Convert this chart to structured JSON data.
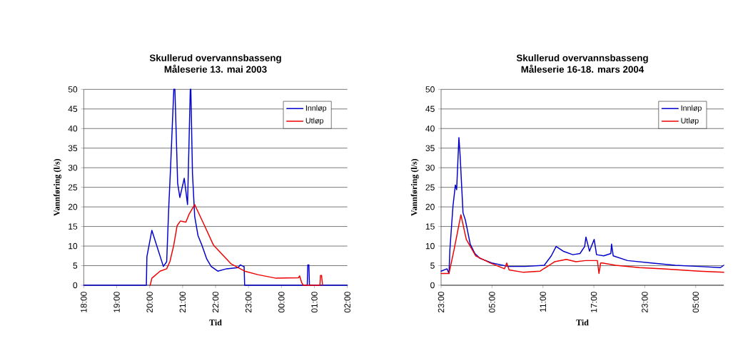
{
  "chart_data": [
    {
      "type": "line",
      "title": "Skullerud overvannsbasseng",
      "subtitle": "Måleserie 13. mai 2003",
      "xlabel": "Tid",
      "ylabel": "Vannføring (l/s)",
      "xlim": [
        "2003-05-13T18:00",
        "2003-05-14T02:00"
      ],
      "xticks": [
        {
          "value": "2003-05-13T18:00",
          "label": "18:00"
        },
        {
          "value": "2003-05-13T19:00",
          "label": "19:00"
        },
        {
          "value": "2003-05-13T20:00",
          "label": "20:00"
        },
        {
          "value": "2003-05-13T21:00",
          "label": "21:00"
        },
        {
          "value": "2003-05-13T22:00",
          "label": "22:00"
        },
        {
          "value": "2003-05-13T23:00",
          "label": "23:00"
        },
        {
          "value": "2003-05-14T00:00",
          "label": "00:00"
        },
        {
          "value": "2003-05-14T01:00",
          "label": "01:00"
        },
        {
          "value": "2003-05-14T02:00",
          "label": "02:00"
        }
      ],
      "ylim": [
        0,
        50
      ],
      "yticks": [
        0,
        5,
        10,
        15,
        20,
        25,
        30,
        35,
        40,
        45,
        50
      ],
      "grid": "y",
      "legend": "top right",
      "marker": "none",
      "line_style": "solid",
      "series": [
        {
          "name": "Innløp",
          "color": "#0000cc",
          "x": [
            "2003-05-13T18:00",
            "2003-05-13T19:54",
            "2003-05-13T19:55",
            "2003-05-13T20:04",
            "2003-05-13T20:25",
            "2003-05-13T20:31",
            "2003-05-13T20:35",
            "2003-05-13T20:38",
            "2003-05-13T20:44",
            "2003-05-13T20:46",
            "2003-05-13T20:51",
            "2003-05-13T20:55",
            "2003-05-13T21:03",
            "2003-05-13T21:09",
            "2003-05-13T21:14",
            "2003-05-13T21:15",
            "2003-05-13T21:18",
            "2003-05-13T21:22",
            "2003-05-13T21:28",
            "2003-05-13T21:35",
            "2003-05-13T21:44",
            "2003-05-13T21:52",
            "2003-05-13T22:04",
            "2003-05-13T22:20",
            "2003-05-13T22:41",
            "2003-05-13T22:45",
            "2003-05-13T22:51",
            "2003-05-13T22:52",
            "2003-05-13T22:53",
            "2003-05-14T00:47",
            "2003-05-14T00:48",
            "2003-05-14T00:50",
            "2003-05-14T00:51",
            "2003-05-14T02:00"
          ],
          "values": [
            0,
            0,
            7.3,
            14,
            4.8,
            6,
            20.6,
            29.7,
            50,
            50,
            26,
            22.4,
            27.3,
            20.6,
            50,
            50,
            28.5,
            17.6,
            12.7,
            10.3,
            6.7,
            4.8,
            3.6,
            4.2,
            4.5,
            5.2,
            4.8,
            4.8,
            0,
            0,
            5.2,
            5.2,
            0,
            0
          ]
        },
        {
          "name": "Utløp",
          "color": "#ee0000",
          "x": [
            "2003-05-13T20:01",
            "2003-05-13T20:04",
            "2003-05-13T20:19",
            "2003-05-13T20:31",
            "2003-05-13T20:37",
            "2003-05-13T20:44",
            "2003-05-13T20:50",
            "2003-05-13T20:56",
            "2003-05-13T21:06",
            "2003-05-13T21:12",
            "2003-05-13T21:22",
            "2003-05-13T21:28",
            "2003-05-13T21:40",
            "2003-05-13T21:56",
            "2003-05-13T22:12",
            "2003-05-13T22:28",
            "2003-05-13T22:53",
            "2003-05-13T23:17",
            "2003-05-13T23:50",
            "2003-05-14T00:31",
            "2003-05-14T00:33",
            "2003-05-14T00:37",
            "2003-05-14T00:40",
            "2003-05-14T01:10",
            "2003-05-14T01:11",
            "2003-05-14T01:13",
            "2003-05-14T01:15"
          ],
          "values": [
            0,
            1.8,
            3.6,
            4.2,
            6.1,
            10.3,
            15.2,
            16.4,
            16.1,
            18.2,
            20.6,
            18.8,
            15.2,
            10.3,
            7.9,
            5.5,
            3.6,
            2.7,
            1.8,
            1.9,
            2.4,
            0.6,
            0,
            0,
            2.5,
            2.5,
            0
          ]
        }
      ]
    },
    {
      "type": "line",
      "title": "Skullerud overvannsbasseng",
      "subtitle": "Måleserie 16-18. mars 2004",
      "xlabel": "Tid",
      "ylabel": "Vannføring (l/s)",
      "xlim": [
        "2004-03-16T23:00",
        "2004-03-18T08:18"
      ],
      "xticks": [
        {
          "value": "2004-03-16T23:00",
          "label": "23:00"
        },
        {
          "value": "2004-03-17T05:00",
          "label": "05:00"
        },
        {
          "value": "2004-03-17T11:00",
          "label": "11:00"
        },
        {
          "value": "2004-03-17T17:00",
          "label": "17:00"
        },
        {
          "value": "2004-03-17T23:00",
          "label": "23:00"
        },
        {
          "value": "2004-03-18T05:00",
          "label": "05:00"
        }
      ],
      "ylim": [
        0,
        50
      ],
      "yticks": [
        0,
        5,
        10,
        15,
        20,
        25,
        30,
        35,
        40,
        45,
        50
      ],
      "grid": "y",
      "legend": "top right",
      "marker": "none",
      "line_style": "solid",
      "series": [
        {
          "name": "Innløp",
          "color": "#0000cc",
          "x": [
            "2004-03-16T23:00",
            "2004-03-16T23:42",
            "2004-03-16T23:56",
            "2004-03-17T00:02",
            "2004-03-17T00:24",
            "2004-03-17T00:41",
            "2004-03-17T00:50",
            "2004-03-17T01:06",
            "2004-03-17T01:15",
            "2004-03-17T01:25",
            "2004-03-17T01:35",
            "2004-03-17T01:52",
            "2004-03-17T02:26",
            "2004-03-17T02:59",
            "2004-03-17T03:33",
            "2004-03-17T04:58",
            "2004-03-17T06:56",
            "2004-03-17T08:54",
            "2004-03-17T11:09",
            "2004-03-17T11:59",
            "2004-03-17T12:33",
            "2004-03-17T13:23",
            "2004-03-17T14:31",
            "2004-03-17T15:22",
            "2004-03-17T15:55",
            "2004-03-17T16:04",
            "2004-03-17T16:29",
            "2004-03-17T17:02",
            "2004-03-17T17:19",
            "2004-03-17T18:10",
            "2004-03-17T19:00",
            "2004-03-17T19:05",
            "2004-03-17T19:17",
            "2004-03-17T20:58",
            "2004-03-17T23:46",
            "2004-03-18T02:35",
            "2004-03-18T05:23",
            "2004-03-18T07:55",
            "2004-03-18T08:18"
          ],
          "values": [
            3.6,
            4.2,
            3,
            9,
            20.2,
            25.6,
            24.4,
            37.7,
            32.8,
            25.6,
            18.5,
            16.6,
            10.5,
            8.1,
            6.9,
            5.7,
            4.8,
            4.8,
            5.1,
            7.5,
            9.9,
            8.7,
            7.8,
            8.1,
            9.9,
            12.3,
            8.7,
            11.7,
            7.8,
            7.5,
            8.1,
            10.5,
            7.5,
            6.3,
            5.7,
            5.1,
            4.8,
            4.5,
            5.1
          ]
        },
        {
          "name": "Utløp",
          "color": "#ee0000",
          "x": [
            "2004-03-16T23:00",
            "2004-03-16T23:56",
            "2004-03-17T00:33",
            "2004-03-17T01:20",
            "2004-03-17T01:58",
            "2004-03-17T03:05",
            "2004-03-17T04:46",
            "2004-03-17T06:28",
            "2004-03-17T06:44",
            "2004-03-17T07:01",
            "2004-03-17T08:43",
            "2004-03-17T10:40",
            "2004-03-17T12:22",
            "2004-03-17T13:46",
            "2004-03-17T14:53",
            "2004-03-17T16:01",
            "2004-03-17T17:25",
            "2004-03-17T17:36",
            "2004-03-17T17:48",
            "2004-03-17T18:00",
            "2004-03-17T19:34",
            "2004-03-17T22:22",
            "2004-03-18T01:11",
            "2004-03-18T05:23",
            "2004-03-18T08:18"
          ],
          "values": [
            3,
            3,
            9.3,
            18,
            11.7,
            7.5,
            5.7,
            4.2,
            5.7,
            3.9,
            3.3,
            3.6,
            6,
            6.6,
            6,
            6.3,
            6.3,
            3,
            5.7,
            5.7,
            5.1,
            4.5,
            4.2,
            3.6,
            3.3
          ]
        }
      ]
    }
  ]
}
